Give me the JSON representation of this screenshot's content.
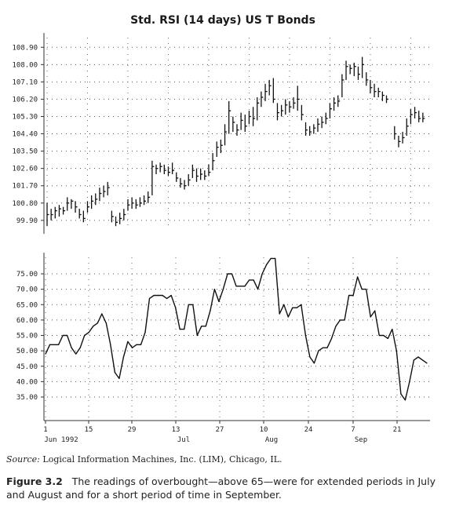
{
  "title": "Std. RSI (14 days) US T Bonds",
  "source_label": "Source:",
  "source_text": "Logical Information Machines, Inc. (LIM), Chicago, IL.",
  "figure_label": "Figure 3.2",
  "caption_text": "The readings of overbought—above 65—were for extended periods in July and August and for a short period of time in September.",
  "chart_data": [
    {
      "type": "bar",
      "subtype": "ohlc",
      "title": "Std. RSI (14 days) US T Bonds",
      "ylim": [
        99.2,
        109.4
      ],
      "yticks": [
        "108.90",
        "108.00",
        "107.10",
        "106.20",
        "105.30",
        "104.40",
        "103.50",
        "102.60",
        "101.70",
        "100.80",
        "99.90"
      ],
      "grid": true,
      "bars": [
        {
          "t": 0,
          "h": 100.8,
          "l": 99.6,
          "c": 100.2
        },
        {
          "t": 1,
          "h": 100.5,
          "l": 99.9,
          "c": 100.2
        },
        {
          "t": 2,
          "h": 100.6,
          "l": 100.0,
          "c": 100.4
        },
        {
          "t": 3,
          "h": 100.7,
          "l": 100.1,
          "c": 100.5
        },
        {
          "t": 4,
          "h": 100.6,
          "l": 100.2,
          "c": 100.4
        },
        {
          "t": 5,
          "h": 101.1,
          "l": 100.4,
          "c": 100.8
        },
        {
          "t": 6,
          "h": 101.0,
          "l": 100.5,
          "c": 100.9
        },
        {
          "t": 7,
          "h": 100.9,
          "l": 100.3,
          "c": 100.6
        },
        {
          "t": 8,
          "h": 100.5,
          "l": 100.0,
          "c": 100.2
        },
        {
          "t": 9,
          "h": 100.4,
          "l": 99.8,
          "c": 100.0
        },
        {
          "t": 10,
          "h": 100.9,
          "l": 100.3,
          "c": 100.6
        },
        {
          "t": 11,
          "h": 101.2,
          "l": 100.5,
          "c": 100.9
        },
        {
          "t": 12,
          "h": 101.3,
          "l": 100.7,
          "c": 101.0
        },
        {
          "t": 13,
          "h": 101.6,
          "l": 100.9,
          "c": 101.3
        },
        {
          "t": 14,
          "h": 101.7,
          "l": 101.1,
          "c": 101.4
        },
        {
          "t": 15,
          "h": 101.9,
          "l": 101.2,
          "c": 101.6
        },
        {
          "t": 16,
          "h": 100.4,
          "l": 99.8,
          "c": 100.1
        },
        {
          "t": 17,
          "h": 100.1,
          "l": 99.6,
          "c": 99.8
        },
        {
          "t": 18,
          "h": 100.3,
          "l": 99.7,
          "c": 100.0
        },
        {
          "t": 19,
          "h": 100.5,
          "l": 99.9,
          "c": 100.2
        },
        {
          "t": 20,
          "h": 101.0,
          "l": 100.4,
          "c": 100.7
        },
        {
          "t": 21,
          "h": 101.1,
          "l": 100.5,
          "c": 100.8
        },
        {
          "t": 22,
          "h": 101.0,
          "l": 100.5,
          "c": 100.7
        },
        {
          "t": 23,
          "h": 101.1,
          "l": 100.6,
          "c": 100.8
        },
        {
          "t": 24,
          "h": 101.2,
          "l": 100.7,
          "c": 100.9
        },
        {
          "t": 25,
          "h": 101.4,
          "l": 100.8,
          "c": 101.1
        },
        {
          "t": 26,
          "h": 103.0,
          "l": 101.2,
          "c": 102.7
        },
        {
          "t": 27,
          "h": 102.8,
          "l": 102.3,
          "c": 102.6
        },
        {
          "t": 28,
          "h": 102.9,
          "l": 102.4,
          "c": 102.7
        },
        {
          "t": 29,
          "h": 102.8,
          "l": 102.3,
          "c": 102.5
        },
        {
          "t": 30,
          "h": 102.7,
          "l": 102.2,
          "c": 102.4
        },
        {
          "t": 31,
          "h": 102.9,
          "l": 102.3,
          "c": 102.5
        },
        {
          "t": 32,
          "h": 102.4,
          "l": 101.9,
          "c": 102.1
        },
        {
          "t": 33,
          "h": 102.1,
          "l": 101.6,
          "c": 101.8
        },
        {
          "t": 34,
          "h": 102.0,
          "l": 101.5,
          "c": 101.7
        },
        {
          "t": 35,
          "h": 102.3,
          "l": 101.7,
          "c": 102.0
        },
        {
          "t": 36,
          "h": 102.8,
          "l": 102.1,
          "c": 102.5
        },
        {
          "t": 37,
          "h": 102.6,
          "l": 101.9,
          "c": 102.2
        },
        {
          "t": 38,
          "h": 102.6,
          "l": 102.0,
          "c": 102.3
        },
        {
          "t": 39,
          "h": 102.5,
          "l": 102.0,
          "c": 102.2
        },
        {
          "t": 40,
          "h": 102.8,
          "l": 102.2,
          "c": 102.4
        },
        {
          "t": 41,
          "h": 103.4,
          "l": 102.5,
          "c": 103.0
        },
        {
          "t": 42,
          "h": 104.0,
          "l": 103.2,
          "c": 103.7
        },
        {
          "t": 43,
          "h": 104.1,
          "l": 103.4,
          "c": 103.8
        },
        {
          "t": 44,
          "h": 104.9,
          "l": 103.8,
          "c": 104.5
        },
        {
          "t": 45,
          "h": 106.1,
          "l": 104.4,
          "c": 105.6
        },
        {
          "t": 46,
          "h": 105.3,
          "l": 104.5,
          "c": 105.0
        },
        {
          "t": 47,
          "h": 104.9,
          "l": 104.3,
          "c": 104.6
        },
        {
          "t": 48,
          "h": 105.5,
          "l": 104.6,
          "c": 105.1
        },
        {
          "t": 49,
          "h": 105.4,
          "l": 104.5,
          "c": 104.8
        },
        {
          "t": 50,
          "h": 105.6,
          "l": 104.9,
          "c": 105.3
        },
        {
          "t": 51,
          "h": 105.8,
          "l": 104.8,
          "c": 105.2
        },
        {
          "t": 52,
          "h": 106.3,
          "l": 105.1,
          "c": 106.0
        },
        {
          "t": 53,
          "h": 106.6,
          "l": 105.8,
          "c": 106.3
        },
        {
          "t": 54,
          "h": 107.0,
          "l": 106.1,
          "c": 106.6
        },
        {
          "t": 55,
          "h": 107.2,
          "l": 106.4,
          "c": 106.9
        },
        {
          "t": 56,
          "h": 107.3,
          "l": 106.0,
          "c": 106.2
        },
        {
          "t": 57,
          "h": 106.0,
          "l": 105.1,
          "c": 105.5
        },
        {
          "t": 58,
          "h": 105.9,
          "l": 105.3,
          "c": 105.6
        },
        {
          "t": 59,
          "h": 106.2,
          "l": 105.4,
          "c": 105.9
        },
        {
          "t": 60,
          "h": 106.1,
          "l": 105.5,
          "c": 105.8
        },
        {
          "t": 61,
          "h": 106.3,
          "l": 105.7,
          "c": 106.0
        },
        {
          "t": 62,
          "h": 106.9,
          "l": 105.6,
          "c": 106.2
        },
        {
          "t": 63,
          "h": 105.9,
          "l": 105.1,
          "c": 105.4
        },
        {
          "t": 64,
          "h": 105.0,
          "l": 104.3,
          "c": 104.6
        },
        {
          "t": 65,
          "h": 104.8,
          "l": 104.3,
          "c": 104.5
        },
        {
          "t": 66,
          "h": 104.9,
          "l": 104.4,
          "c": 104.7
        },
        {
          "t": 67,
          "h": 105.2,
          "l": 104.5,
          "c": 104.9
        },
        {
          "t": 68,
          "h": 105.3,
          "l": 104.7,
          "c": 105.0
        },
        {
          "t": 69,
          "h": 105.5,
          "l": 104.9,
          "c": 105.2
        },
        {
          "t": 70,
          "h": 106.0,
          "l": 105.2,
          "c": 105.7
        },
        {
          "t": 71,
          "h": 106.3,
          "l": 105.6,
          "c": 106.0
        },
        {
          "t": 72,
          "h": 106.4,
          "l": 105.8,
          "c": 106.1
        },
        {
          "t": 73,
          "h": 107.5,
          "l": 106.3,
          "c": 107.2
        },
        {
          "t": 74,
          "h": 108.2,
          "l": 107.2,
          "c": 107.9
        },
        {
          "t": 75,
          "h": 108.0,
          "l": 107.5,
          "c": 107.8
        },
        {
          "t": 76,
          "h": 108.1,
          "l": 107.4,
          "c": 107.9
        },
        {
          "t": 77,
          "h": 107.9,
          "l": 107.2,
          "c": 107.5
        },
        {
          "t": 78,
          "h": 108.4,
          "l": 107.3,
          "c": 108.0
        },
        {
          "t": 79,
          "h": 107.6,
          "l": 106.9,
          "c": 107.2
        },
        {
          "t": 80,
          "h": 107.2,
          "l": 106.5,
          "c": 106.8
        },
        {
          "t": 81,
          "h": 107.0,
          "l": 106.3,
          "c": 106.6
        },
        {
          "t": 82,
          "h": 106.8,
          "l": 106.3,
          "c": 106.6
        },
        {
          "t": 83,
          "h": 106.6,
          "l": 106.1,
          "c": 106.4
        },
        {
          "t": 84,
          "h": 106.4,
          "l": 106.0,
          "c": 106.2
        },
        {
          "t": 86,
          "h": 104.8,
          "l": 104.1,
          "c": 104.4
        },
        {
          "t": 87,
          "h": 104.3,
          "l": 103.7,
          "c": 104.0
        },
        {
          "t": 88,
          "h": 104.5,
          "l": 103.9,
          "c": 104.2
        },
        {
          "t": 89,
          "h": 105.2,
          "l": 104.3,
          "c": 104.8
        },
        {
          "t": 90,
          "h": 105.7,
          "l": 104.9,
          "c": 105.4
        },
        {
          "t": 91,
          "h": 105.8,
          "l": 105.2,
          "c": 105.5
        },
        {
          "t": 92,
          "h": 105.6,
          "l": 105.0,
          "c": 105.2
        },
        {
          "t": 93,
          "h": 105.5,
          "l": 105.0,
          "c": 105.2
        }
      ]
    },
    {
      "type": "line",
      "ylim": [
        30,
        80
      ],
      "yticks": [
        "75.00",
        "70.00",
        "65.00",
        "60.00",
        "55.00",
        "50.00",
        "45.00",
        "40.00",
        "35.00"
      ],
      "grid": true,
      "x_tick_labels": [
        "1",
        "15",
        "29",
        "13",
        "27",
        "10",
        "24",
        "7",
        "21"
      ],
      "month_labels": [
        "Jun 1992",
        "Jul",
        "Aug",
        "Sep"
      ],
      "series": [
        {
          "values": [
            49,
            52,
            52,
            52,
            55,
            55,
            51,
            49,
            51,
            55,
            56,
            58,
            59,
            62,
            59,
            52,
            43,
            41,
            48,
            53,
            51,
            52,
            52,
            56,
            67,
            68,
            68,
            68,
            67,
            68,
            64,
            57,
            57,
            65,
            65,
            55,
            58,
            58,
            63,
            70,
            66,
            70,
            75,
            75,
            71,
            71,
            71,
            73,
            73,
            70,
            75,
            78,
            80,
            80,
            62,
            65,
            61,
            64,
            64,
            65,
            55,
            48,
            46,
            50,
            51,
            51,
            54,
            58,
            60,
            60,
            68,
            68,
            74,
            70,
            70,
            61,
            63,
            55,
            55,
            54,
            57,
            50,
            36,
            34,
            40,
            47,
            48,
            47,
            46
          ]
        }
      ]
    }
  ]
}
